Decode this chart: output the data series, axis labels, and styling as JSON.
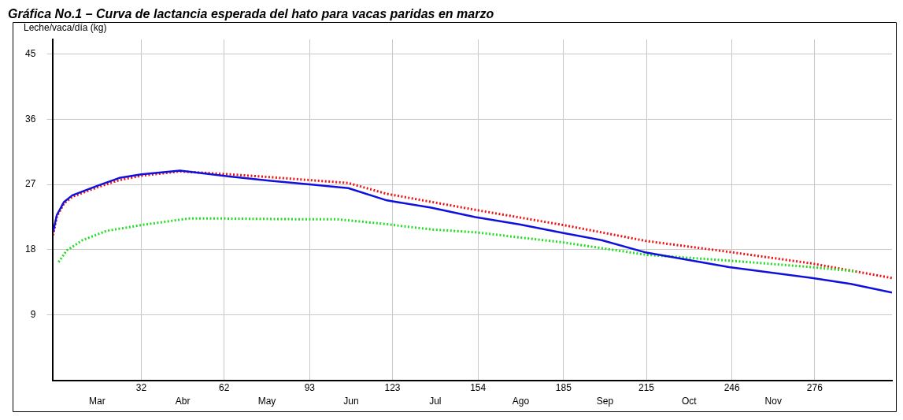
{
  "chart_data": {
    "type": "line",
    "title": "Gráfica No.1 – Curva de lactancia esperada del hato para vacas paridas en marzo",
    "ylabel": "Leche/vaca/día (kg)",
    "xlim": [
      0,
      304
    ],
    "ylim": [
      0,
      47
    ],
    "xticks": [
      32,
      62,
      93,
      123,
      154,
      185,
      215,
      246,
      276
    ],
    "annotations": [
      "Mar",
      "Abr",
      "May",
      "Jun",
      "Jul",
      "Ago",
      "Sep",
      "Oct",
      "Nov"
    ],
    "yticks": [
      9,
      18,
      27,
      36,
      45
    ],
    "grid": true,
    "legend": false,
    "marker": "none",
    "series": [
      {
        "color": "#ee1111",
        "line_style": "dotted",
        "x": [
          0,
          1.4,
          4,
          7,
          16,
          24,
          32,
          46,
          64,
          79,
          93,
          107,
          121,
          153,
          185,
          215,
          245,
          275,
          304
        ],
        "values": [
          20.0,
          22.6,
          24.4,
          25.3,
          26.6,
          27.6,
          28.2,
          28.8,
          28.4,
          28.0,
          27.6,
          27.2,
          25.7,
          23.5,
          21.4,
          19.2,
          17.7,
          16.1,
          14.1
        ]
      },
      {
        "color": "#22dd22",
        "line_style": "dotted",
        "x": [
          2,
          5,
          10.6,
          19.4,
          32,
          49,
          62,
          91,
          103,
          119,
          137,
          153,
          185,
          215,
          245,
          275,
          291
        ],
        "values": [
          16.3,
          17.9,
          19.3,
          20.6,
          21.4,
          22.3,
          22.3,
          22.2,
          22.2,
          21.6,
          20.8,
          20.4,
          19.0,
          17.3,
          16.5,
          15.6,
          15.0
        ]
      },
      {
        "color": "#1010dd",
        "line_style": "solid",
        "x": [
          0,
          1.4,
          4,
          7,
          16,
          24,
          32,
          46,
          64,
          79,
          93,
          107,
          121,
          137,
          153,
          169,
          185,
          199,
          215,
          245,
          275,
          289,
          304
        ],
        "values": [
          20.4,
          22.8,
          24.6,
          25.5,
          26.8,
          27.9,
          28.4,
          28.9,
          28.1,
          27.5,
          27.0,
          26.5,
          24.8,
          23.8,
          22.5,
          21.5,
          20.3,
          19.3,
          17.6,
          15.6,
          14.1,
          13.3,
          12.1
        ]
      }
    ]
  }
}
